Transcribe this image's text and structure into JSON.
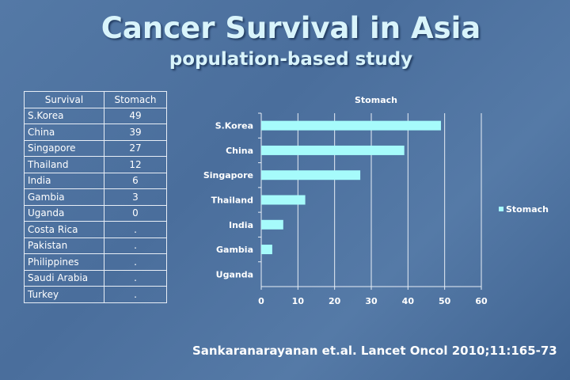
{
  "slide": {
    "title": "Cancer Survival in Asia",
    "subtitle": "population-based study",
    "citation": "Sankaranarayanan et.al. Lancet Oncol 2010;11:165-73"
  },
  "table": {
    "headers": [
      "Survival",
      "Stomach"
    ],
    "rows": [
      [
        "S.Korea",
        "49"
      ],
      [
        "China",
        "39"
      ],
      [
        "Singapore",
        "27"
      ],
      [
        "Thailand",
        "12"
      ],
      [
        "India",
        "6"
      ],
      [
        "Gambia",
        "3"
      ],
      [
        "Uganda",
        "0"
      ],
      [
        "Costa Rica",
        "."
      ],
      [
        "Pakistan",
        "."
      ],
      [
        "Philippines",
        "."
      ],
      [
        "Saudi Arabia",
        "."
      ],
      [
        "Turkey",
        "."
      ]
    ]
  },
  "chart_data": {
    "type": "bar",
    "orientation": "horizontal",
    "title": "Stomach",
    "categories": [
      "S.Korea",
      "China",
      "Singapore",
      "Thailand",
      "India",
      "Gambia",
      "Uganda"
    ],
    "series": [
      {
        "name": "Stomach",
        "values": [
          49,
          39,
          27,
          12,
          6,
          3,
          0
        ],
        "color": "#a6fbfb"
      }
    ],
    "xlim": [
      0,
      60
    ],
    "xticks": [
      0,
      10,
      20,
      30,
      40,
      50,
      60
    ],
    "grid": true,
    "legend": "right"
  }
}
